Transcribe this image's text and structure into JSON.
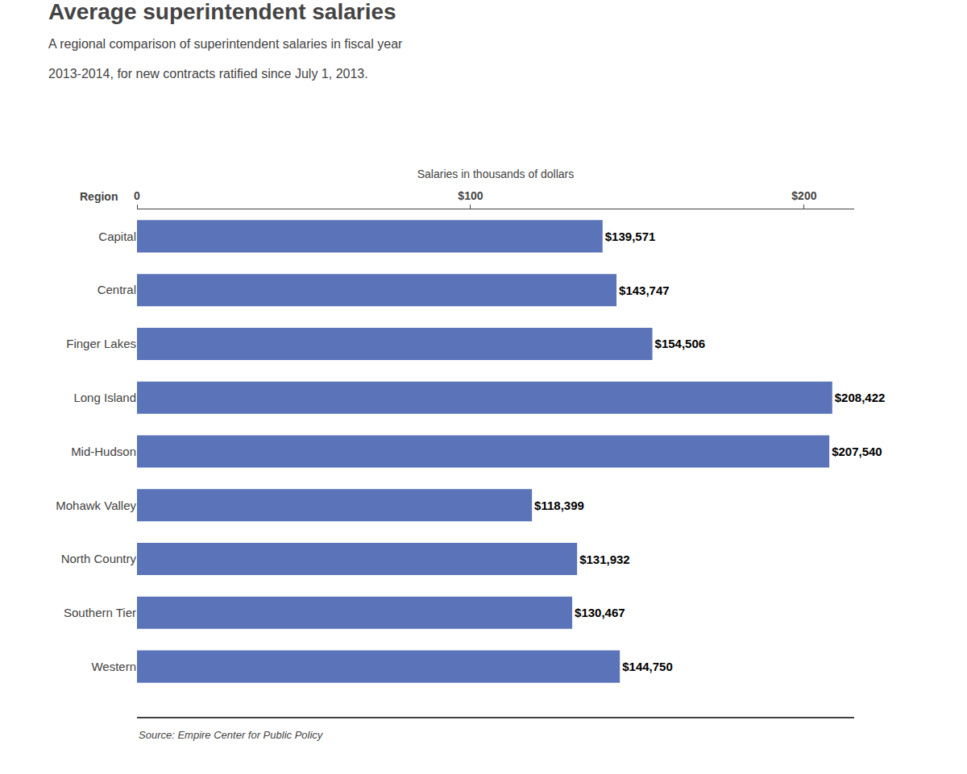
{
  "chart_data": {
    "type": "bar",
    "orientation": "horizontal",
    "title": "Average superintendent salaries",
    "subtitle": "A regional comparison of superintendent salaries in fiscal year\n2013-2014, for new contracts ratified since July 1, 2013.",
    "xlabel": "Salaries in thousands of dollars",
    "ylabel": "Region",
    "source": "Source: Empire Center for Public Policy",
    "categories": [
      "Capital",
      "Central",
      "Finger Lakes",
      "Long Island",
      "Mid-Hudson",
      "Mohawk Valley",
      "North Country",
      "Southern Tier",
      "Western"
    ],
    "values": [
      139571,
      143747,
      154506,
      208422,
      207540,
      118399,
      131932,
      130467,
      144750
    ],
    "value_labels": [
      "$139,571",
      "$143,747",
      "$154,506",
      "$208,422",
      "$207,540",
      "$118,399",
      "$131,932",
      "$130,467",
      "$144,750"
    ],
    "color": "#5b73b8",
    "xlim": [
      0,
      215000
    ],
    "xticks": [
      0,
      {
        "value": 100000,
        "label": "$100"
      },
      {
        "value": 200000,
        "label": "$200"
      }
    ],
    "grid": false,
    "data_labels": true
  }
}
